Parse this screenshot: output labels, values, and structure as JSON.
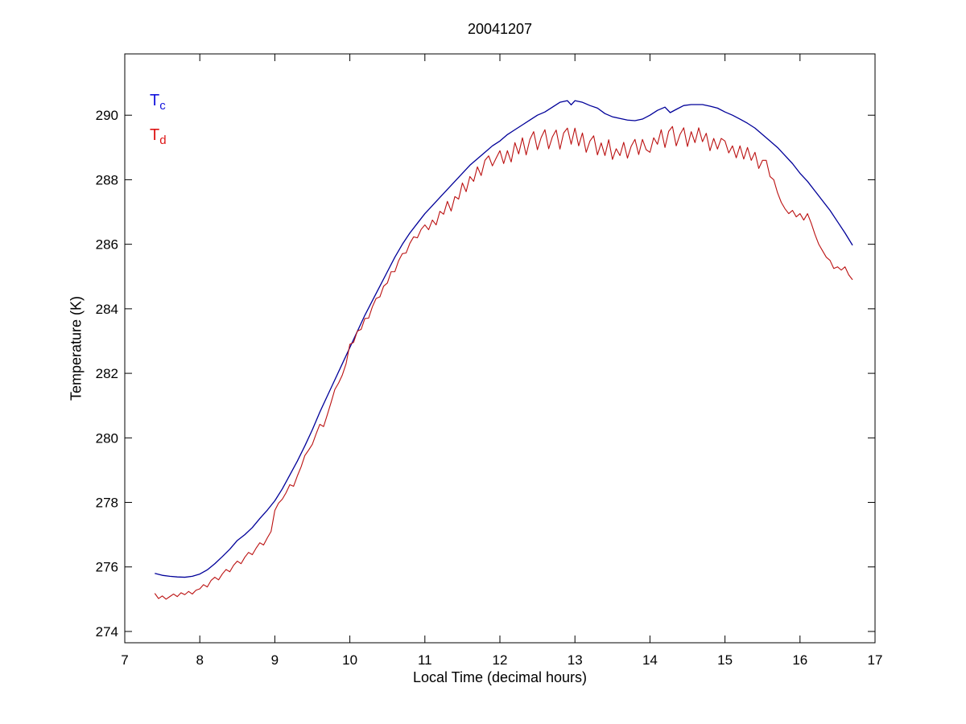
{
  "figure": {
    "title": "20041207",
    "xlabel": "Local Time (decimal hours)",
    "ylabel": "Temperature (K)"
  },
  "legend": {
    "position": "top-left-inside",
    "entries": [
      {
        "main": "T",
        "sub": "c",
        "color": "#1414dd"
      },
      {
        "main": "T",
        "sub": "d",
        "color": "#dd1414"
      }
    ]
  },
  "chart_data": {
    "type": "line",
    "title": "20041207",
    "xlabel": "Local Time (decimal hours)",
    "ylabel": "Temperature (K)",
    "xlim": [
      7,
      17
    ],
    "ylim": [
      273.65,
      291.9
    ],
    "xticks": [
      7,
      8,
      9,
      10,
      11,
      12,
      13,
      14,
      15,
      16,
      17
    ],
    "yticks": [
      274,
      276,
      278,
      280,
      282,
      284,
      286,
      288,
      290
    ],
    "grid": false,
    "frame_color": "#000000",
    "background": "#ffffff",
    "series": [
      {
        "name": "Tc",
        "label_main": "T",
        "label_sub": "c",
        "color": "#000099",
        "stroke_width": 1.3,
        "points": [
          [
            7.4,
            275.8
          ],
          [
            7.5,
            275.74
          ],
          [
            7.6,
            275.71
          ],
          [
            7.7,
            275.69
          ],
          [
            7.8,
            275.68
          ],
          [
            7.9,
            275.71
          ],
          [
            8.0,
            275.78
          ],
          [
            8.1,
            275.91
          ],
          [
            8.2,
            276.1
          ],
          [
            8.3,
            276.32
          ],
          [
            8.4,
            276.55
          ],
          [
            8.5,
            276.82
          ],
          [
            8.6,
            277.0
          ],
          [
            8.7,
            277.22
          ],
          [
            8.8,
            277.5
          ],
          [
            8.9,
            277.76
          ],
          [
            9.0,
            278.05
          ],
          [
            9.1,
            278.42
          ],
          [
            9.2,
            278.85
          ],
          [
            9.3,
            279.28
          ],
          [
            9.4,
            279.75
          ],
          [
            9.5,
            280.25
          ],
          [
            9.6,
            280.8
          ],
          [
            9.7,
            281.3
          ],
          [
            9.8,
            281.8
          ],
          [
            9.9,
            282.3
          ],
          [
            10.0,
            282.8
          ],
          [
            10.1,
            283.3
          ],
          [
            10.2,
            283.8
          ],
          [
            10.3,
            284.25
          ],
          [
            10.4,
            284.7
          ],
          [
            10.5,
            285.15
          ],
          [
            10.6,
            285.6
          ],
          [
            10.7,
            286.0
          ],
          [
            10.8,
            286.35
          ],
          [
            10.9,
            286.65
          ],
          [
            11.0,
            286.95
          ],
          [
            11.1,
            287.2
          ],
          [
            11.2,
            287.45
          ],
          [
            11.3,
            287.7
          ],
          [
            11.4,
            287.95
          ],
          [
            11.5,
            288.2
          ],
          [
            11.6,
            288.45
          ],
          [
            11.7,
            288.65
          ],
          [
            11.8,
            288.85
          ],
          [
            11.9,
            289.05
          ],
          [
            12.0,
            289.2
          ],
          [
            12.1,
            289.4
          ],
          [
            12.2,
            289.55
          ],
          [
            12.3,
            289.7
          ],
          [
            12.4,
            289.85
          ],
          [
            12.5,
            290.0
          ],
          [
            12.6,
            290.1
          ],
          [
            12.7,
            290.25
          ],
          [
            12.8,
            290.4
          ],
          [
            12.9,
            290.45
          ],
          [
            12.95,
            290.32
          ],
          [
            13.0,
            290.45
          ],
          [
            13.1,
            290.4
          ],
          [
            13.2,
            290.3
          ],
          [
            13.3,
            290.22
          ],
          [
            13.4,
            290.05
          ],
          [
            13.5,
            289.95
          ],
          [
            13.6,
            289.9
          ],
          [
            13.7,
            289.85
          ],
          [
            13.8,
            289.83
          ],
          [
            13.9,
            289.88
          ],
          [
            14.0,
            290.0
          ],
          [
            14.1,
            290.15
          ],
          [
            14.2,
            290.25
          ],
          [
            14.27,
            290.08
          ],
          [
            14.35,
            290.18
          ],
          [
            14.45,
            290.3
          ],
          [
            14.55,
            290.33
          ],
          [
            14.7,
            290.33
          ],
          [
            14.8,
            290.28
          ],
          [
            14.9,
            290.22
          ],
          [
            15.0,
            290.1
          ],
          [
            15.1,
            290.0
          ],
          [
            15.2,
            289.88
          ],
          [
            15.3,
            289.75
          ],
          [
            15.4,
            289.6
          ],
          [
            15.5,
            289.4
          ],
          [
            15.6,
            289.2
          ],
          [
            15.7,
            289.0
          ],
          [
            15.8,
            288.75
          ],
          [
            15.9,
            288.5
          ],
          [
            16.0,
            288.2
          ],
          [
            16.1,
            287.95
          ],
          [
            16.2,
            287.65
          ],
          [
            16.3,
            287.35
          ],
          [
            16.4,
            287.05
          ],
          [
            16.5,
            286.7
          ],
          [
            16.6,
            286.35
          ],
          [
            16.7,
            285.97
          ]
        ]
      },
      {
        "name": "Td",
        "label_main": "T",
        "label_sub": "d",
        "color": "#bb1111",
        "stroke_width": 1.1,
        "t0": 7.4,
        "dt": 0.05,
        "values": [
          275.18,
          275.02,
          275.1,
          275.0,
          275.08,
          275.16,
          275.08,
          275.2,
          275.14,
          275.24,
          275.16,
          275.28,
          275.32,
          275.45,
          275.38,
          275.58,
          275.68,
          275.6,
          275.78,
          275.92,
          275.85,
          276.05,
          276.18,
          276.1,
          276.3,
          276.45,
          276.38,
          276.58,
          276.75,
          276.68,
          276.9,
          277.1,
          277.75,
          277.98,
          278.1,
          278.3,
          278.55,
          278.5,
          278.82,
          279.1,
          279.45,
          279.62,
          279.8,
          280.12,
          280.42,
          280.35,
          280.72,
          281.1,
          281.5,
          281.7,
          281.95,
          282.3,
          282.9,
          282.96,
          283.31,
          283.36,
          283.7,
          283.71,
          284.06,
          284.32,
          284.37,
          284.7,
          284.8,
          285.15,
          285.15,
          285.49,
          285.71,
          285.73,
          286.03,
          286.23,
          286.2,
          286.46,
          286.6,
          286.45,
          286.75,
          286.6,
          287.02,
          286.93,
          287.33,
          287.03,
          287.48,
          287.4,
          287.9,
          287.63,
          288.1,
          287.95,
          288.4,
          288.13,
          288.6,
          288.74,
          288.43,
          288.67,
          288.9,
          288.5,
          288.9,
          288.55,
          289.15,
          288.8,
          289.3,
          288.77,
          289.25,
          289.49,
          288.93,
          289.31,
          289.55,
          288.96,
          289.33,
          289.54,
          288.95,
          289.45,
          289.6,
          289.1,
          289.6,
          289.05,
          289.45,
          288.85,
          289.2,
          289.36,
          288.77,
          289.14,
          288.75,
          289.24,
          288.63,
          288.96,
          288.75,
          289.16,
          288.67,
          289.04,
          289.25,
          288.78,
          289.25,
          288.93,
          288.85,
          289.3,
          289.1,
          289.55,
          289.0,
          289.5,
          289.65,
          289.05,
          289.4,
          289.61,
          289.03,
          289.49,
          289.15,
          289.61,
          289.18,
          289.44,
          288.9,
          289.28,
          288.95,
          289.28,
          289.2,
          288.83,
          289.05,
          288.68,
          289.05,
          288.64,
          289.0,
          288.6,
          288.85,
          288.35,
          288.6,
          288.6,
          288.1,
          288.0,
          287.6,
          287.3,
          287.1,
          286.95,
          287.05,
          286.85,
          286.95,
          286.75,
          286.95,
          286.65,
          286.3,
          286.0,
          285.8,
          285.6,
          285.5,
          285.25,
          285.3,
          285.2,
          285.3,
          285.05,
          284.9
        ]
      }
    ]
  }
}
